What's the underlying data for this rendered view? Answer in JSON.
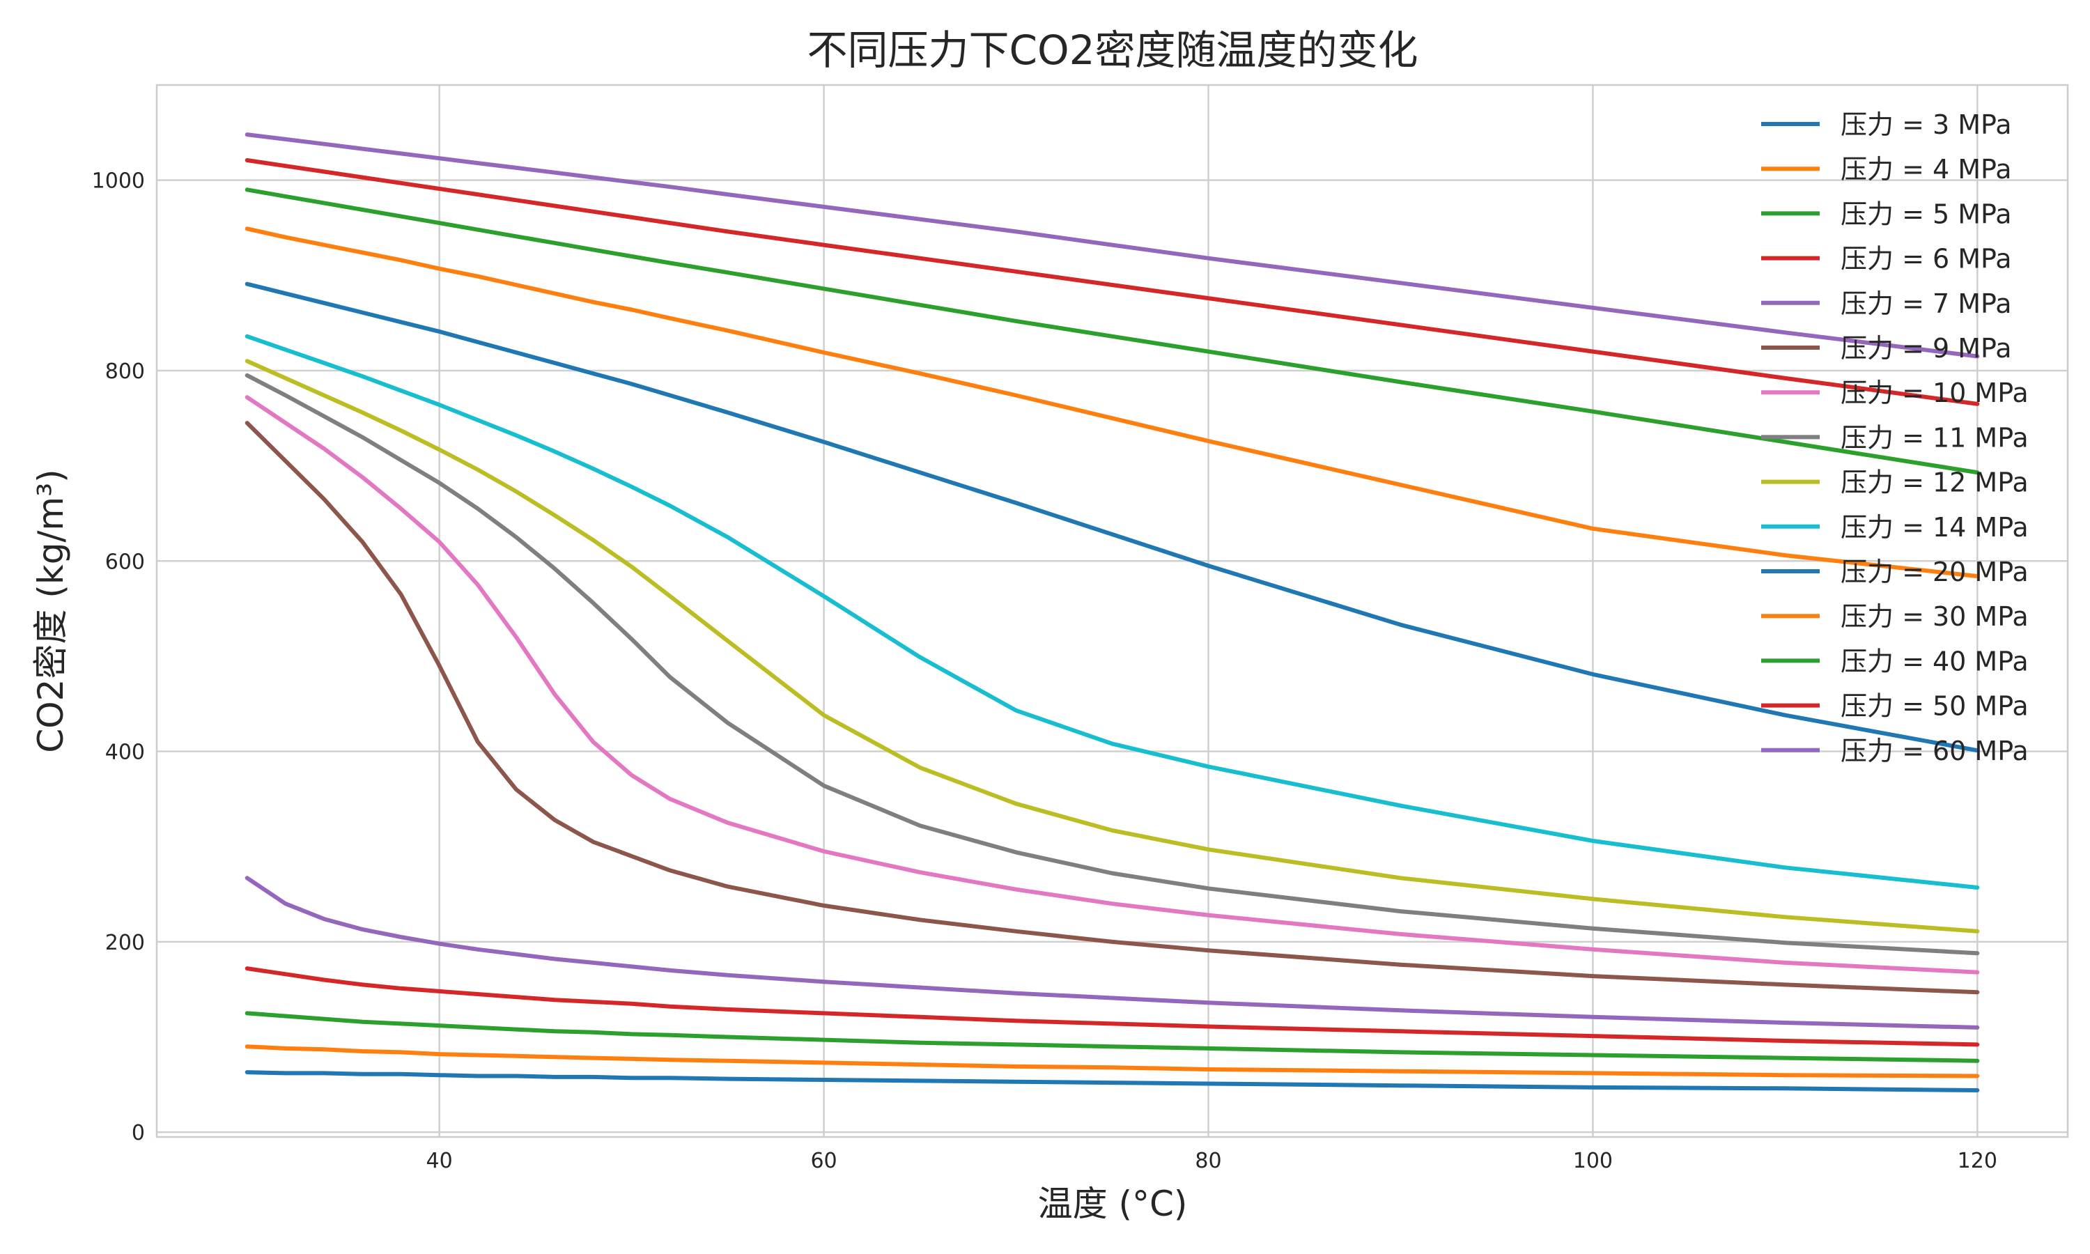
{
  "chart_data": {
    "type": "line",
    "title": "不同压力下CO2密度随温度的变化",
    "xlabel": "温度 (°C)",
    "ylabel": "CO2密度 (kg/m³)",
    "xlim": [
      25.3,
      124.7
    ],
    "ylim": [
      -5,
      1100
    ],
    "xticks": [
      40,
      60,
      80,
      100,
      120
    ],
    "yticks": [
      0,
      200,
      400,
      600,
      800,
      1000
    ],
    "grid": true,
    "legend_position": "top-right",
    "x": [
      30,
      32,
      34,
      36,
      38,
      40,
      42,
      44,
      46,
      48,
      50,
      52,
      55,
      60,
      65,
      70,
      75,
      80,
      90,
      100,
      110,
      120
    ],
    "series": [
      {
        "name": "压力 = 3 MPa",
        "color": "#1f77b4",
        "values": [
          63,
          62,
          62,
          61,
          61,
          60,
          59,
          59,
          58,
          58,
          57,
          57,
          56,
          55,
          54,
          53,
          52,
          51,
          49,
          47,
          46,
          44
        ]
      },
      {
        "name": "压力 = 4 MPa",
        "color": "#ff7f0e",
        "values": [
          90,
          88,
          87,
          85,
          84,
          82,
          81,
          80,
          79,
          78,
          77,
          76,
          75,
          73,
          71,
          69,
          68,
          66,
          64,
          62,
          60,
          59
        ]
      },
      {
        "name": "压力 = 5 MPa",
        "color": "#2ca02c",
        "values": [
          125,
          122,
          119,
          116,
          114,
          112,
          110,
          108,
          106,
          105,
          103,
          102,
          100,
          97,
          94,
          92,
          90,
          88,
          84,
          81,
          78,
          75
        ]
      },
      {
        "name": "压力 = 6 MPa",
        "color": "#d62728",
        "values": [
          172,
          166,
          160,
          155,
          151,
          148,
          145,
          142,
          139,
          137,
          135,
          132,
          129,
          125,
          121,
          117,
          114,
          111,
          106,
          101,
          96,
          92
        ]
      },
      {
        "name": "压力 = 7 MPa",
        "color": "#9467bd",
        "values": [
          267,
          240,
          224,
          213,
          205,
          198,
          192,
          187,
          182,
          178,
          174,
          170,
          165,
          158,
          152,
          146,
          141,
          136,
          128,
          121,
          115,
          110
        ]
      },
      {
        "name": "压力 = 9 MPa",
        "color": "#8c564b",
        "values": [
          745,
          705,
          665,
          620,
          565,
          490,
          410,
          360,
          328,
          305,
          290,
          275,
          258,
          238,
          223,
          211,
          200,
          191,
          176,
          164,
          155,
          147
        ]
      },
      {
        "name": "压力 = 10 MPa",
        "color": "#e377c2",
        "values": [
          772,
          745,
          718,
          688,
          655,
          620,
          575,
          520,
          460,
          410,
          375,
          350,
          325,
          295,
          273,
          255,
          240,
          228,
          208,
          192,
          178,
          168
        ]
      },
      {
        "name": "压力 = 11 MPa",
        "color": "#7f7f7f",
        "values": [
          795,
          774,
          752,
          730,
          706,
          682,
          655,
          625,
          592,
          556,
          518,
          478,
          430,
          364,
          322,
          294,
          272,
          256,
          232,
          214,
          199,
          188
        ]
      },
      {
        "name": "压力 = 12 MPa",
        "color": "#bcbd22",
        "values": [
          810,
          792,
          774,
          756,
          737,
          717,
          696,
          673,
          648,
          622,
          594,
          563,
          516,
          438,
          383,
          345,
          317,
          297,
          267,
          245,
          226,
          211
        ]
      },
      {
        "name": "压力 = 14 MPa",
        "color": "#17becf",
        "values": [
          836,
          822,
          808,
          794,
          779,
          764,
          748,
          732,
          715,
          697,
          678,
          658,
          625,
          563,
          499,
          443,
          408,
          384,
          343,
          306,
          278,
          257
        ]
      },
      {
        "name": "压力 = 20 MPa",
        "color": "#1f77b4",
        "values": [
          891,
          881,
          871,
          861,
          851,
          841,
          830,
          819,
          808,
          797,
          786,
          774,
          756,
          725,
          693,
          661,
          628,
          595,
          533,
          481,
          438,
          401
        ]
      },
      {
        "name": "压力 = 30 MPa",
        "color": "#ff7f0e",
        "values": [
          949,
          940,
          932,
          924,
          916,
          907,
          899,
          890,
          881,
          872,
          864,
          855,
          842,
          819,
          797,
          774,
          750,
          726,
          680,
          634,
          606,
          584
        ]
      },
      {
        "name": "压力 = 40 MPa",
        "color": "#2ca02c",
        "values": [
          990,
          983,
          976,
          969,
          962,
          955,
          948,
          941,
          934,
          927,
          920,
          913,
          903,
          886,
          869,
          852,
          836,
          820,
          788,
          757,
          725,
          693
        ]
      },
      {
        "name": "压力 = 50 MPa",
        "color": "#d62728",
        "values": [
          1021,
          1015,
          1009,
          1003,
          997,
          991,
          985,
          979,
          973,
          967,
          961,
          955,
          946,
          932,
          918,
          904,
          890,
          876,
          848,
          820,
          792,
          765
        ]
      },
      {
        "name": "压力 = 60 MPa",
        "color": "#9467bd",
        "values": [
          1048,
          1043,
          1038,
          1033,
          1028,
          1023,
          1018,
          1013,
          1008,
          1003,
          998,
          993,
          985,
          972,
          959,
          946,
          932,
          918,
          892,
          866,
          840,
          815
        ]
      }
    ]
  }
}
